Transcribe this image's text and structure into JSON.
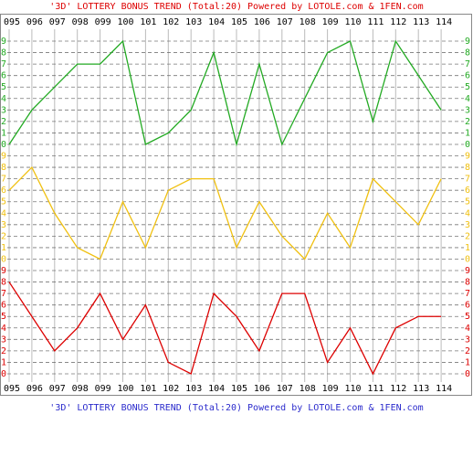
{
  "chart_data": {
    "type": "line",
    "title": "'3D' LOTTERY BONUS TREND (Total:20)  Powered by LOTOLE.com & 1FEN.com",
    "categories": [
      "095",
      "096",
      "097",
      "098",
      "099",
      "100",
      "101",
      "102",
      "103",
      "104",
      "105",
      "106",
      "107",
      "108",
      "109",
      "110",
      "111",
      "112",
      "113",
      "114"
    ],
    "series": [
      {
        "color": "#22aa22",
        "values": [
          0,
          3,
          5,
          7,
          7,
          9,
          0,
          1,
          3,
          8,
          0,
          7,
          0,
          4,
          8,
          9,
          2,
          9,
          6,
          3
        ]
      },
      {
        "color": "#f0c010",
        "values": [
          6,
          8,
          4,
          1,
          0,
          5,
          1,
          6,
          7,
          7,
          1,
          5,
          2,
          0,
          4,
          1,
          7,
          5,
          3,
          7
        ]
      },
      {
        "color": "#dd0000",
        "values": [
          8,
          5,
          2,
          4,
          7,
          3,
          6,
          1,
          0,
          7,
          5,
          2,
          7,
          7,
          1,
          4,
          0,
          4,
          5,
          5
        ]
      }
    ],
    "ylim": [
      0,
      9
    ],
    "yticks": [
      0,
      1,
      2,
      3,
      4,
      5,
      6,
      7,
      8,
      9
    ],
    "grid": true
  }
}
